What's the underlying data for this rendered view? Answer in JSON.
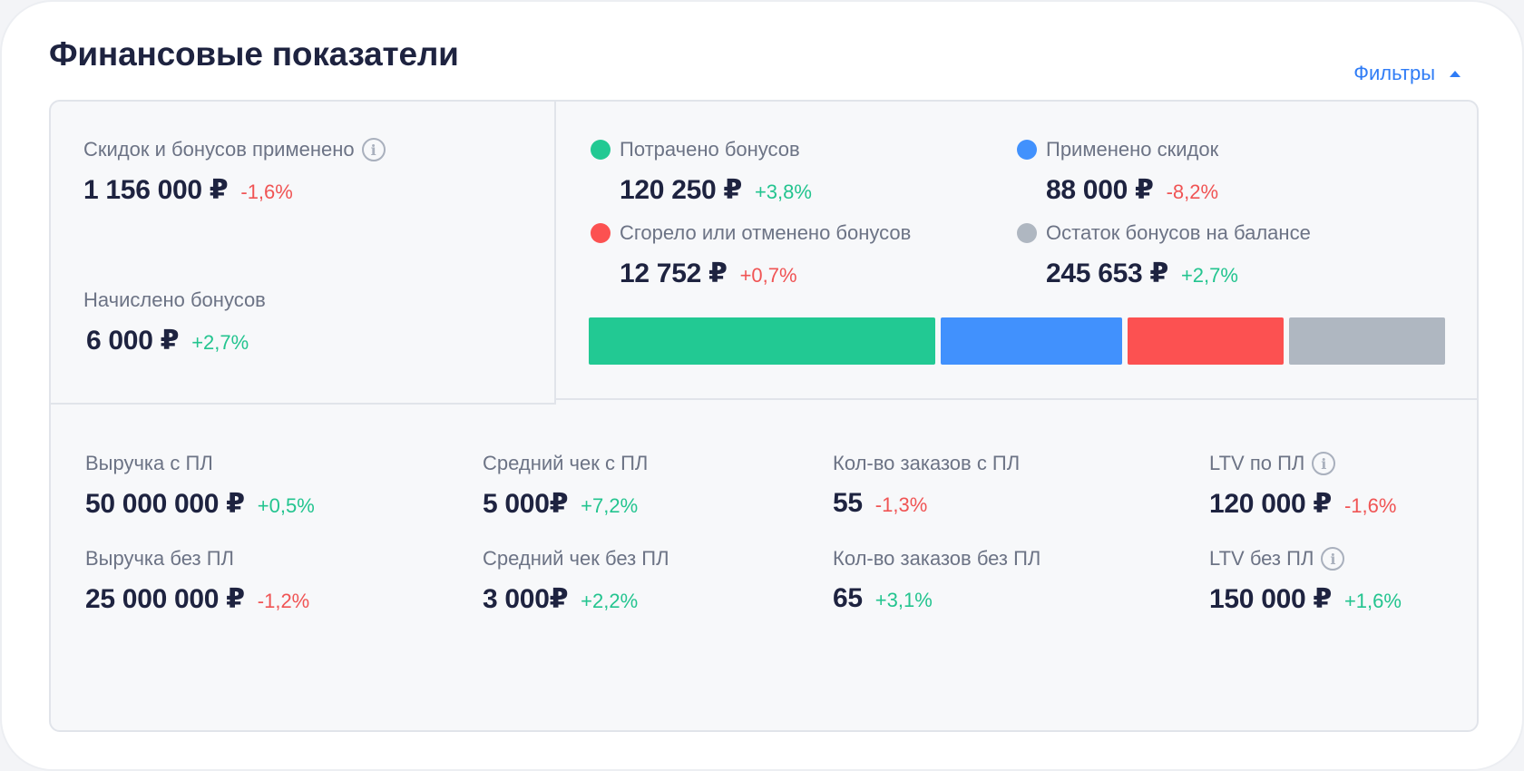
{
  "header": {
    "title": "Финансовые показатели",
    "filters_label": "Фильтры"
  },
  "summary": {
    "discounts": {
      "label": "Скидок и бонусов применено",
      "value": "1 156 000 ₽",
      "delta": "-1,6%"
    },
    "accrued": {
      "label": "Начислено бонусов",
      "value": "6 000 ₽",
      "delta": "+2,7%"
    }
  },
  "breakdown": {
    "items": [
      {
        "label": "Потрачено бонусов",
        "value": "120 250 ₽",
        "delta": "+3,8%",
        "color": "#22c993",
        "share": 0.4
      },
      {
        "label": "Применено скидок",
        "value": "88 000 ₽",
        "delta": "-8,2%",
        "color": "#4191fd",
        "share": 0.21
      },
      {
        "label": "Сгорело или отменено бонусов",
        "value": "12 752 ₽",
        "delta": "+0,7%",
        "color": "#fc5151",
        "share": 0.18
      },
      {
        "label": "Остаток бонусов на балансе",
        "value": "245 653 ₽",
        "delta": "+2,7%",
        "color": "#afb7c1",
        "share": 0.18
      }
    ]
  },
  "metrics": [
    {
      "label": "Выручка с ПЛ",
      "value": "50 000 000 ₽",
      "delta": "+0,5%"
    },
    {
      "label": "Выручка без ПЛ",
      "value": "25 000 000 ₽",
      "delta": "-1,2%"
    },
    {
      "label": "Средний чек с ПЛ",
      "value": "5 000₽",
      "delta": "+7,2%"
    },
    {
      "label": "Средний чек без ПЛ",
      "value": "3 000₽",
      "delta": "+2,2%"
    },
    {
      "label": "Кол-во заказов с ПЛ",
      "value": "55",
      "delta": "-1,3%"
    },
    {
      "label": "Кол-во заказов без ПЛ",
      "value": "65",
      "delta": "+3,1%"
    },
    {
      "label": "LTV по ПЛ",
      "value": "120 000 ₽",
      "delta": "-1,6%"
    },
    {
      "label": "LTV без ПЛ",
      "value": "150 000 ₽",
      "delta": "+1,6%"
    }
  ]
}
